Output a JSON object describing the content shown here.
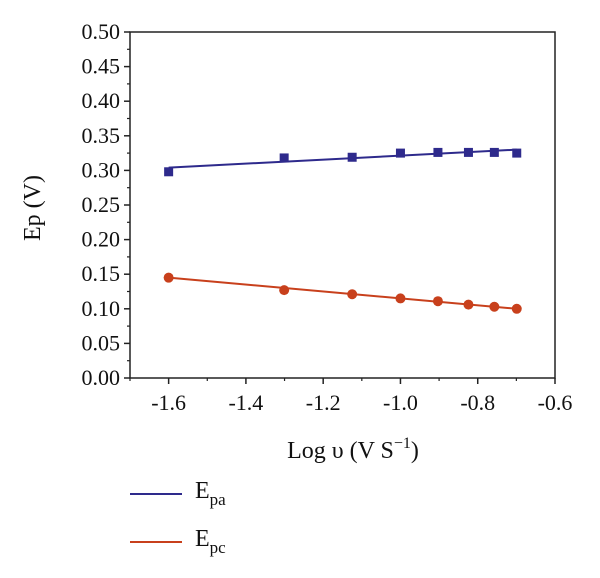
{
  "chart_data": {
    "type": "scatter",
    "title": "",
    "xlabel": {
      "main": "Log υ (V S",
      "sup": "−1",
      "close": ")"
    },
    "ylabel": "Ep (V)",
    "xlim": [
      -1.7,
      -0.6
    ],
    "ylim": [
      0,
      0.5
    ],
    "x_ticks": [
      -1.6,
      -1.4,
      -1.2,
      -1.0,
      -0.8,
      -0.6
    ],
    "x_tick_labels": [
      "-1.6",
      "-1.4",
      "-1.2",
      "-1.0",
      "-0.8",
      "-0.6"
    ],
    "y_ticks": [
      0,
      0.05,
      0.1,
      0.15,
      0.2,
      0.25,
      0.3,
      0.35,
      0.4,
      0.45,
      0.5
    ],
    "y_tick_labels": [
      "0.00",
      "0.05",
      "0.10",
      "0.15",
      "0.20",
      "0.25",
      "0.30",
      "0.35",
      "0.40",
      "0.45",
      "0.50"
    ],
    "grid": false,
    "legend_position": "bottom-left-below-plot",
    "series": [
      {
        "name": {
          "main": "E",
          "sub": "pa"
        },
        "color": "#2e2a8c",
        "marker": "square",
        "x": [
          -1.6,
          -1.301,
          -1.125,
          -1.0,
          -0.903,
          -0.824,
          -0.757,
          -0.699
        ],
        "y": [
          0.298,
          0.318,
          0.319,
          0.325,
          0.326,
          0.326,
          0.326,
          0.325
        ],
        "fit": {
          "x": [
            -1.6,
            -0.699
          ],
          "y": [
            0.304,
            0.33
          ]
        }
      },
      {
        "name": {
          "main": "E",
          "sub": "pc"
        },
        "color": "#c8401c",
        "marker": "circle",
        "x": [
          -1.6,
          -1.301,
          -1.125,
          -1.0,
          -0.903,
          -0.824,
          -0.757,
          -0.699
        ],
        "y": [
          0.145,
          0.127,
          0.121,
          0.115,
          0.111,
          0.106,
          0.103,
          0.1
        ],
        "fit": {
          "x": [
            -1.6,
            -0.699
          ],
          "y": [
            0.145,
            0.1
          ]
        }
      }
    ]
  }
}
